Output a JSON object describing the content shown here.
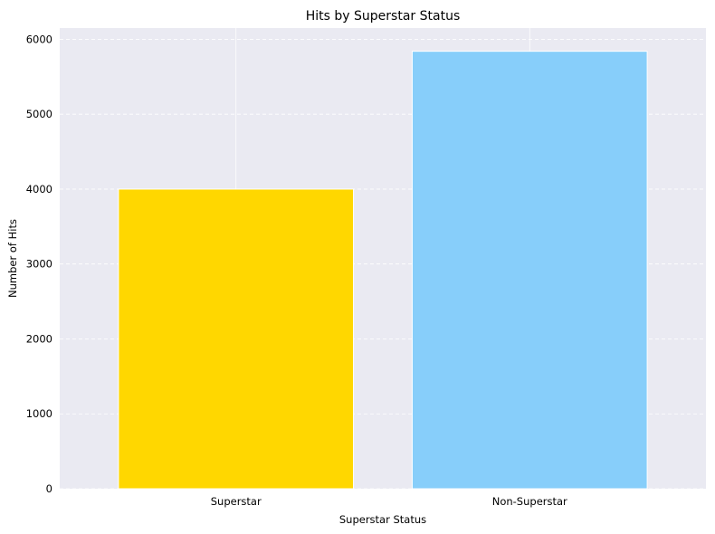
{
  "chart_data": {
    "type": "bar",
    "title": "Hits by Superstar Status",
    "xlabel": "Superstar Status",
    "ylabel": "Number of Hits",
    "categories": [
      "Superstar",
      "Non-Superstar"
    ],
    "values": [
      4000,
      5840
    ],
    "colors": [
      "#FFD700",
      "#87CEFA"
    ],
    "ylim": [
      0,
      6150
    ],
    "yticks": [
      0,
      1000,
      2000,
      3000,
      4000,
      5000,
      6000
    ],
    "grid": true,
    "background": "#EAEAF2"
  }
}
